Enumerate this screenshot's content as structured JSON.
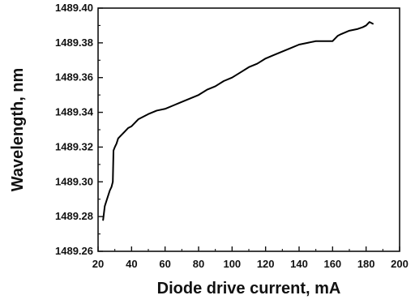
{
  "chart_data": {
    "type": "line",
    "title": "",
    "xlabel": "Diode drive current, mA",
    "ylabel": "Wavelength, nm",
    "xlim": [
      20,
      200
    ],
    "ylim": [
      1489.26,
      1489.4
    ],
    "x_ticks": [
      20,
      40,
      60,
      80,
      100,
      120,
      140,
      160,
      180,
      200
    ],
    "y_ticks": [
      1489.26,
      1489.28,
      1489.3,
      1489.32,
      1489.34,
      1489.36,
      1489.38,
      1489.4
    ],
    "x_tick_labels": [
      "20",
      "40",
      "60",
      "80",
      "100",
      "120",
      "140",
      "160",
      "180",
      "200"
    ],
    "y_tick_labels": [
      "1489.26",
      "1489.28",
      "1489.30",
      "1489.32",
      "1489.34",
      "1489.36",
      "1489.38",
      "1489.40"
    ],
    "grid": false,
    "legend": "none",
    "line_color": "#000000",
    "series": [
      {
        "x": [
          23,
          24,
          25,
          26,
          27,
          28,
          28.8,
          29.2,
          30,
          31,
          32,
          34,
          36,
          38,
          40,
          42,
          44,
          46,
          48,
          50,
          55,
          60,
          65,
          70,
          75,
          80,
          85,
          90,
          95,
          100,
          105,
          110,
          115,
          120,
          125,
          130,
          135,
          140,
          145,
          150,
          155,
          160,
          163,
          165,
          170,
          175,
          178,
          180,
          182,
          184
        ],
        "y": [
          1489.278,
          1489.286,
          1489.289,
          1489.292,
          1489.295,
          1489.297,
          1489.3,
          1489.318,
          1489.32,
          1489.322,
          1489.325,
          1489.327,
          1489.329,
          1489.331,
          1489.332,
          1489.334,
          1489.336,
          1489.337,
          1489.338,
          1489.339,
          1489.341,
          1489.342,
          1489.344,
          1489.346,
          1489.348,
          1489.35,
          1489.353,
          1489.355,
          1489.358,
          1489.36,
          1489.363,
          1489.366,
          1489.368,
          1489.371,
          1489.373,
          1489.375,
          1489.377,
          1489.379,
          1489.38,
          1489.381,
          1489.381,
          1489.381,
          1489.384,
          1489.385,
          1489.387,
          1489.388,
          1489.389,
          1489.39,
          1489.392,
          1489.391
        ]
      }
    ]
  }
}
